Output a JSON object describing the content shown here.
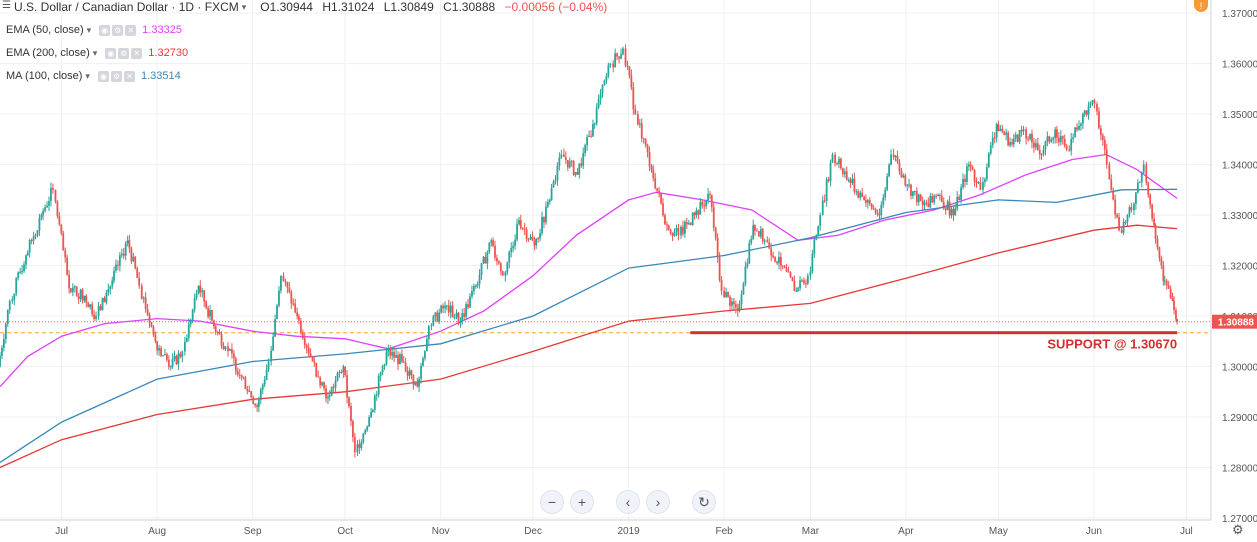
{
  "symbol": {
    "title": "U.S. Dollar / Canadian Dollar · 1D · FXCM",
    "open": "O1.30944",
    "high": "H1.31024",
    "low": "L1.30849",
    "close": "C1.30888",
    "change": "−0.00056 (−0.04%)"
  },
  "indicators": [
    {
      "label": "EMA (50, close)",
      "value": "1.33325",
      "color": "#e040fb"
    },
    {
      "label": "EMA (200, close)",
      "value": "1.32730",
      "color": "#e53935"
    },
    {
      "label": "MA (100, close)",
      "value": "1.33514",
      "color": "#3a87b8"
    }
  ],
  "alert_badge": "!",
  "nav_buttons": {
    "zoom_out": "−",
    "zoom_in": "+",
    "scroll_left": "‹",
    "scroll_right": "›",
    "reset": "↻"
  },
  "settings_icon": "gear-icon",
  "chart_data": {
    "type": "candlestick",
    "price_axis": {
      "ticks": [
        "1.37000",
        "1.36000",
        "1.35000",
        "1.34000",
        "1.33000",
        "1.32000",
        "1.31000",
        "1.30000",
        "1.29000",
        "1.28000",
        "1.27000"
      ],
      "range": [
        1.2696,
        1.3726
      ],
      "current_price_label": "1.30888",
      "current_price": 1.30888
    },
    "time_axis": {
      "ticks": [
        {
          "label": "Jul",
          "date": "2018-07-01"
        },
        {
          "label": "Aug",
          "date": "2018-08-01"
        },
        {
          "label": "Sep",
          "date": "2018-09-01"
        },
        {
          "label": "Oct",
          "date": "2018-10-01"
        },
        {
          "label": "Nov",
          "date": "2018-11-01"
        },
        {
          "label": "Dec",
          "date": "2018-12-01"
        },
        {
          "label": "2019",
          "date": "2019-01-01"
        },
        {
          "label": "Feb",
          "date": "2019-02-01"
        },
        {
          "label": "Mar",
          "date": "2019-03-01"
        },
        {
          "label": "Apr",
          "date": "2019-04-01"
        },
        {
          "label": "May",
          "date": "2019-05-01"
        },
        {
          "label": "Jun",
          "date": "2019-06-01"
        },
        {
          "label": "Jul",
          "date": "2019-07-01"
        }
      ],
      "range": [
        "2018-06-11",
        "2019-07-09"
      ]
    },
    "colors": {
      "up": "#26a69a",
      "down": "#ef5350",
      "grid": "#eef0f3",
      "support": "#d32f2f",
      "dashed": "#f5a623"
    },
    "support": {
      "label": "SUPPORT @ 1.30670",
      "price": 1.3067,
      "from": "2019-01-21",
      "to": "2019-06-28"
    },
    "dashed_level": 1.3067,
    "ohlc_points": [
      [
        "2018-06-11",
        1.3,
        1.314,
        1.2985,
        1.313
      ],
      [
        "2018-06-15",
        1.313,
        1.324,
        1.311,
        1.322
      ],
      [
        "2018-06-20",
        1.322,
        1.333,
        1.32,
        1.33
      ],
      [
        "2018-06-25",
        1.33,
        1.3385,
        1.327,
        1.335
      ],
      [
        "2018-06-29",
        1.335,
        1.336,
        1.313,
        1.3155
      ],
      [
        "2018-07-04",
        1.3155,
        1.32,
        1.31,
        1.314
      ],
      [
        "2018-07-09",
        1.314,
        1.318,
        1.309,
        1.31
      ],
      [
        "2018-07-13",
        1.31,
        1.318,
        1.308,
        1.317
      ],
      [
        "2018-07-18",
        1.317,
        1.328,
        1.315,
        1.325
      ],
      [
        "2018-07-23",
        1.325,
        1.329,
        1.314,
        1.316
      ],
      [
        "2018-07-27",
        1.316,
        1.318,
        1.302,
        1.305
      ],
      [
        "2018-08-01",
        1.305,
        1.307,
        1.297,
        1.3
      ],
      [
        "2018-08-06",
        1.3,
        1.308,
        1.296,
        1.303
      ],
      [
        "2018-08-10",
        1.303,
        1.318,
        1.301,
        1.316
      ],
      [
        "2018-08-15",
        1.316,
        1.317,
        1.306,
        1.308
      ],
      [
        "2018-08-20",
        1.308,
        1.31,
        1.301,
        1.304
      ],
      [
        "2018-08-24",
        1.304,
        1.305,
        1.296,
        1.298
      ],
      [
        "2018-08-29",
        1.298,
        1.299,
        1.29,
        1.292
      ],
      [
        "2018-09-03",
        1.292,
        1.303,
        1.291,
        1.301
      ],
      [
        "2018-09-07",
        1.301,
        1.32,
        1.3,
        1.318
      ],
      [
        "2018-09-11",
        1.318,
        1.321,
        1.308,
        1.31
      ],
      [
        "2018-09-16",
        1.31,
        1.311,
        1.299,
        1.301
      ],
      [
        "2018-09-21",
        1.301,
        1.302,
        1.291,
        1.294
      ],
      [
        "2018-09-26",
        1.294,
        1.302,
        1.289,
        1.3
      ],
      [
        "2018-10-01",
        1.3,
        1.301,
        1.28,
        1.283
      ],
      [
        "2018-10-05",
        1.283,
        1.293,
        1.279,
        1.291
      ],
      [
        "2018-10-10",
        1.291,
        1.305,
        1.29,
        1.303
      ],
      [
        "2018-10-15",
        1.303,
        1.309,
        1.299,
        1.301
      ],
      [
        "2018-10-20",
        1.301,
        1.308,
        1.292,
        1.296
      ],
      [
        "2018-10-25",
        1.296,
        1.31,
        1.295,
        1.308
      ],
      [
        "2018-10-29",
        1.308,
        1.314,
        1.304,
        1.312
      ],
      [
        "2018-11-03",
        1.312,
        1.313,
        1.306,
        1.309
      ],
      [
        "2018-11-08",
        1.309,
        1.318,
        1.307,
        1.316
      ],
      [
        "2018-11-13",
        1.316,
        1.327,
        1.314,
        1.325
      ],
      [
        "2018-11-18",
        1.325,
        1.327,
        1.314,
        1.318
      ],
      [
        "2018-11-22",
        1.318,
        1.332,
        1.316,
        1.329
      ],
      [
        "2018-11-27",
        1.329,
        1.332,
        1.321,
        1.324
      ],
      [
        "2018-12-02",
        1.324,
        1.336,
        1.322,
        1.333
      ],
      [
        "2018-12-07",
        1.333,
        1.345,
        1.331,
        1.342
      ],
      [
        "2018-12-11",
        1.342,
        1.346,
        1.336,
        1.338
      ],
      [
        "2018-12-16",
        1.338,
        1.35,
        1.337,
        1.348
      ],
      [
        "2018-12-21",
        1.348,
        1.363,
        1.347,
        1.36
      ],
      [
        "2018-12-27",
        1.36,
        1.3665,
        1.358,
        1.363
      ],
      [
        "2018-12-31",
        1.363,
        1.364,
        1.348,
        1.35
      ],
      [
        "2019-01-04",
        1.35,
        1.351,
        1.337,
        1.339
      ],
      [
        "2019-01-09",
        1.339,
        1.34,
        1.325,
        1.328
      ],
      [
        "2019-01-14",
        1.328,
        1.33,
        1.318,
        1.326
      ],
      [
        "2019-01-18",
        1.326,
        1.332,
        1.322,
        1.33
      ],
      [
        "2019-01-23",
        1.33,
        1.338,
        1.326,
        1.334
      ],
      [
        "2019-01-28",
        1.334,
        1.335,
        1.314,
        1.315
      ],
      [
        "2019-02-01",
        1.315,
        1.316,
        1.307,
        1.311
      ],
      [
        "2019-02-06",
        1.311,
        1.33,
        1.31,
        1.328
      ],
      [
        "2019-02-11",
        1.328,
        1.333,
        1.322,
        1.325
      ],
      [
        "2019-02-15",
        1.325,
        1.329,
        1.316,
        1.32
      ],
      [
        "2019-02-20",
        1.32,
        1.327,
        1.312,
        1.315
      ],
      [
        "2019-02-25",
        1.315,
        1.32,
        1.313,
        1.318
      ],
      [
        "2019-03-01",
        1.318,
        1.332,
        1.316,
        1.33
      ],
      [
        "2019-03-05",
        1.33,
        1.344,
        1.329,
        1.342
      ],
      [
        "2019-03-09",
        1.342,
        1.347,
        1.335,
        1.337
      ],
      [
        "2019-03-14",
        1.337,
        1.339,
        1.33,
        1.333
      ],
      [
        "2019-03-19",
        1.333,
        1.336,
        1.325,
        1.33
      ],
      [
        "2019-03-24",
        1.33,
        1.345,
        1.328,
        1.342
      ],
      [
        "2019-03-28",
        1.342,
        1.345,
        1.333,
        1.336
      ],
      [
        "2019-04-02",
        1.336,
        1.338,
        1.33,
        1.332
      ],
      [
        "2019-04-07",
        1.332,
        1.336,
        1.329,
        1.334
      ],
      [
        "2019-04-12",
        1.334,
        1.339,
        1.327,
        1.33
      ],
      [
        "2019-04-17",
        1.33,
        1.342,
        1.328,
        1.34
      ],
      [
        "2019-04-22",
        1.34,
        1.344,
        1.333,
        1.335
      ],
      [
        "2019-04-26",
        1.335,
        1.352,
        1.334,
        1.348
      ],
      [
        "2019-05-01",
        1.348,
        1.351,
        1.339,
        1.344
      ],
      [
        "2019-05-06",
        1.344,
        1.35,
        1.34,
        1.347
      ],
      [
        "2019-05-10",
        1.347,
        1.35,
        1.338,
        1.342
      ],
      [
        "2019-05-15",
        1.342,
        1.349,
        1.34,
        1.347
      ],
      [
        "2019-05-20",
        1.347,
        1.348,
        1.338,
        1.343
      ],
      [
        "2019-05-24",
        1.343,
        1.353,
        1.341,
        1.35
      ],
      [
        "2019-05-29",
        1.35,
        1.356,
        1.346,
        1.352
      ],
      [
        "2019-06-02",
        1.352,
        1.353,
        1.338,
        1.34
      ],
      [
        "2019-06-06",
        1.34,
        1.341,
        1.324,
        1.327
      ],
      [
        "2019-06-10",
        1.327,
        1.335,
        1.325,
        1.331
      ],
      [
        "2019-06-14",
        1.331,
        1.342,
        1.33,
        1.34
      ],
      [
        "2019-06-18",
        1.34,
        1.342,
        1.325,
        1.328
      ],
      [
        "2019-06-21",
        1.328,
        1.329,
        1.315,
        1.317
      ],
      [
        "2019-06-24",
        1.317,
        1.322,
        1.311,
        1.313
      ],
      [
        "2019-06-27",
        1.313,
        1.314,
        1.3085,
        1.3094
      ],
      [
        "2019-06-28",
        1.3094,
        1.3102,
        1.3085,
        1.3089
      ]
    ],
    "series": [
      {
        "name": "EMA (50, close)",
        "color": "#e040fb",
        "points": [
          [
            "2018-06-11",
            1.296
          ],
          [
            "2018-06-20",
            1.302
          ],
          [
            "2018-07-01",
            1.306
          ],
          [
            "2018-07-15",
            1.3085
          ],
          [
            "2018-08-01",
            1.3095
          ],
          [
            "2018-08-15",
            1.309
          ],
          [
            "2018-09-01",
            1.307
          ],
          [
            "2018-09-15",
            1.306
          ],
          [
            "2018-10-01",
            1.3055
          ],
          [
            "2018-10-15",
            1.3035
          ],
          [
            "2018-11-01",
            1.307
          ],
          [
            "2018-11-15",
            1.311
          ],
          [
            "2018-12-01",
            1.318
          ],
          [
            "2018-12-15",
            1.326
          ],
          [
            "2019-01-01",
            1.333
          ],
          [
            "2019-01-10",
            1.3345
          ],
          [
            "2019-01-25",
            1.333
          ],
          [
            "2019-02-10",
            1.331
          ],
          [
            "2019-02-25",
            1.325
          ],
          [
            "2019-03-10",
            1.326
          ],
          [
            "2019-03-25",
            1.329
          ],
          [
            "2019-04-10",
            1.331
          ],
          [
            "2019-04-25",
            1.334
          ],
          [
            "2019-05-10",
            1.338
          ],
          [
            "2019-05-25",
            1.341
          ],
          [
            "2019-06-05",
            1.342
          ],
          [
            "2019-06-15",
            1.339
          ],
          [
            "2019-06-28",
            1.3333
          ]
        ]
      },
      {
        "name": "EMA (200, close)",
        "color": "#e53935",
        "points": [
          [
            "2018-06-11",
            1.28
          ],
          [
            "2018-07-01",
            1.2855
          ],
          [
            "2018-08-01",
            1.2905
          ],
          [
            "2018-09-01",
            1.2935
          ],
          [
            "2018-10-01",
            1.295
          ],
          [
            "2018-11-01",
            1.2975
          ],
          [
            "2018-12-01",
            1.303
          ],
          [
            "2019-01-01",
            1.309
          ],
          [
            "2019-02-01",
            1.311
          ],
          [
            "2019-03-01",
            1.3125
          ],
          [
            "2019-04-01",
            1.3175
          ],
          [
            "2019-05-01",
            1.3225
          ],
          [
            "2019-06-01",
            1.327
          ],
          [
            "2019-06-15",
            1.328
          ],
          [
            "2019-06-28",
            1.3273
          ]
        ]
      },
      {
        "name": "MA (100, close)",
        "color": "#3a87b8",
        "points": [
          [
            "2018-06-11",
            1.281
          ],
          [
            "2018-07-01",
            1.289
          ],
          [
            "2018-08-01",
            1.2975
          ],
          [
            "2018-09-01",
            1.301
          ],
          [
            "2018-10-01",
            1.3025
          ],
          [
            "2018-11-01",
            1.3045
          ],
          [
            "2018-12-01",
            1.31
          ],
          [
            "2019-01-01",
            1.3195
          ],
          [
            "2019-02-01",
            1.322
          ],
          [
            "2019-03-01",
            1.3255
          ],
          [
            "2019-04-01",
            1.3305
          ],
          [
            "2019-05-01",
            1.333
          ],
          [
            "2019-05-20",
            1.3325
          ],
          [
            "2019-06-10",
            1.335
          ],
          [
            "2019-06-28",
            1.3351
          ]
        ]
      }
    ]
  }
}
